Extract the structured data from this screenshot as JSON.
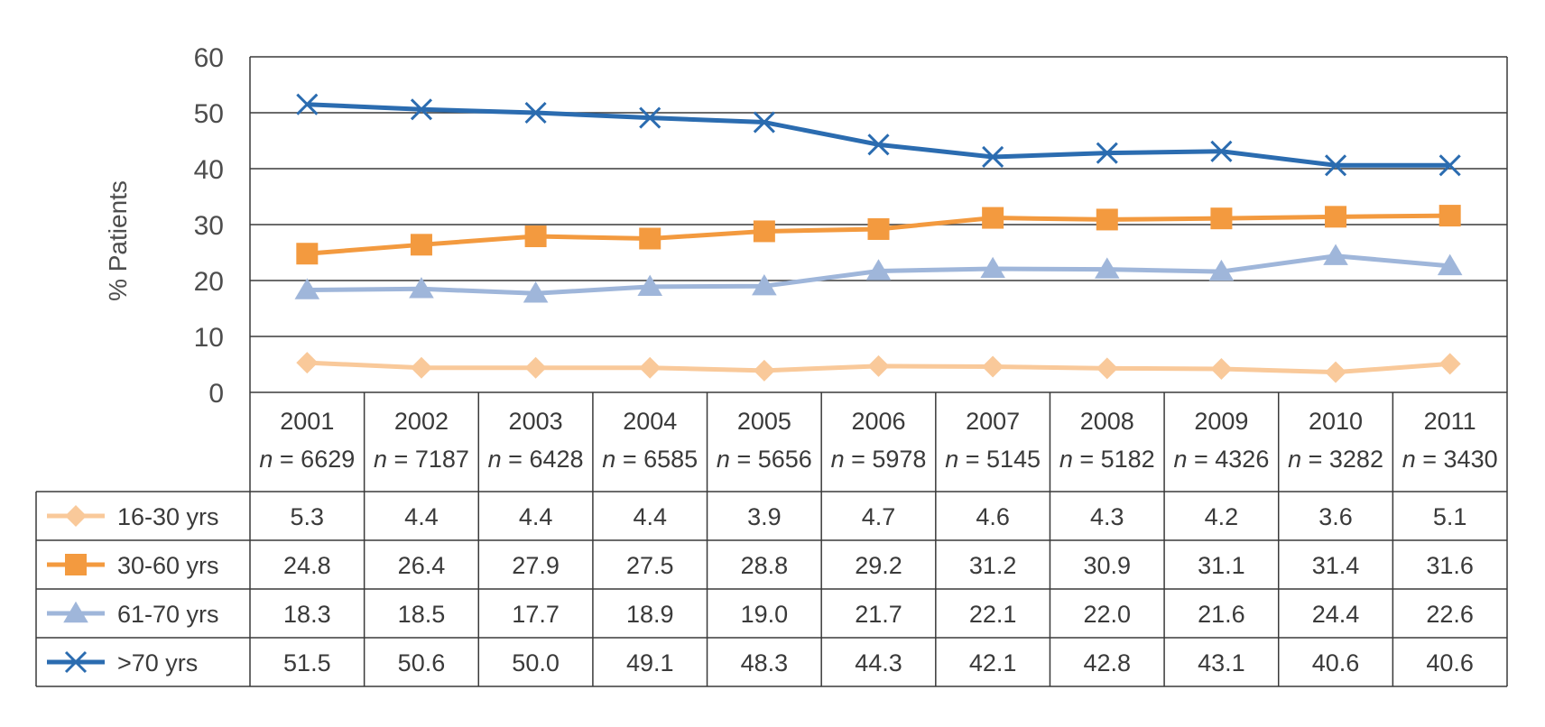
{
  "chart_data": {
    "type": "line",
    "ylabel": "% Patients",
    "ylim": [
      0,
      60
    ],
    "yticks": [
      0,
      10,
      20,
      30,
      40,
      50,
      60
    ],
    "grid": true,
    "categories": [
      "2001",
      "2002",
      "2003",
      "2004",
      "2005",
      "2006",
      "2007",
      "2008",
      "2009",
      "2010",
      "2011"
    ],
    "n_prefix": "n",
    "n_values": [
      6629,
      7187,
      6428,
      6585,
      5656,
      5978,
      5145,
      5182,
      4326,
      3282,
      3430
    ],
    "legend_placement": "data table rows",
    "series": [
      {
        "name": "16-30 yrs",
        "color": "#f9c99a",
        "marker": "diamond",
        "values": [
          5.3,
          4.4,
          4.4,
          4.4,
          3.9,
          4.7,
          4.6,
          4.3,
          4.2,
          3.6,
          5.1
        ]
      },
      {
        "name": "30-60 yrs",
        "color": "#f39a3f",
        "marker": "square",
        "values": [
          24.8,
          26.4,
          27.9,
          27.5,
          28.8,
          29.2,
          31.2,
          30.9,
          31.1,
          31.4,
          31.6
        ]
      },
      {
        "name": "61-70 yrs",
        "color": "#9fb6da",
        "marker": "triangle",
        "values": [
          18.3,
          18.5,
          17.7,
          18.9,
          19.0,
          21.7,
          22.1,
          22.0,
          21.6,
          24.4,
          22.6
        ]
      },
      {
        "name": ">70 yrs",
        "color": "#2b6cb0",
        "marker": "x",
        "values": [
          51.5,
          50.6,
          50.0,
          49.1,
          48.3,
          44.3,
          42.1,
          42.8,
          43.1,
          40.6,
          40.6
        ]
      }
    ]
  }
}
